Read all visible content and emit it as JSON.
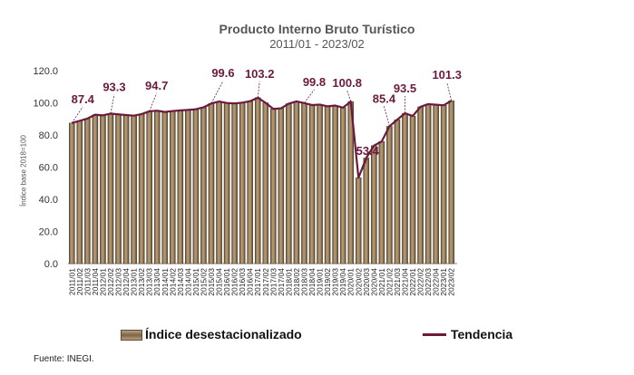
{
  "chart_title": "Producto Interno Bruto Turístico",
  "chart_subtitle": "2011/01 - 2023/02",
  "source_note": "Fuente: INEGI.",
  "chart_data": {
    "type": "bar",
    "ylabel": "Índice base 2018=100",
    "ylim": [
      0,
      120
    ],
    "yticks": [
      "0.0",
      "20.0",
      "40.0",
      "60.0",
      "80.0",
      "100.0",
      "120.0"
    ],
    "grid": false,
    "legend_position": "bottom",
    "categories": [
      "2011/01",
      "2011/02",
      "2011/03",
      "2011/04",
      "2012/01",
      "2012/02",
      "2012/03",
      "2012/04",
      "2013/01",
      "2013/02",
      "2013/03",
      "2013/04",
      "2014/01",
      "2014/02",
      "2014/03",
      "2014/04",
      "2015/01",
      "2015/02",
      "2015/03",
      "2015/04",
      "2016/01",
      "2016/02",
      "2016/03",
      "2016/04",
      "2017/01",
      "2017/02",
      "2017/03",
      "2017/04",
      "2018/01",
      "2018/02",
      "2018/03",
      "2018/04",
      "2019/01",
      "2019/02",
      "2019/03",
      "2019/04",
      "2020/01",
      "2020/02",
      "2020/03",
      "2020/04",
      "2021/01",
      "2021/02",
      "2021/03",
      "2021/04",
      "2022/01",
      "2022/02",
      "2022/03",
      "2022/04",
      "2023/01",
      "2023/02"
    ],
    "series": [
      {
        "name": "Índice desestacionalizado",
        "kind": "bar",
        "color": "#8a7555",
        "values": [
          87.4,
          88.8,
          90.2,
          92.6,
          92.2,
          93.3,
          92.8,
          92.4,
          92.0,
          93.0,
          94.7,
          95.1,
          94.3,
          94.9,
          95.3,
          95.6,
          96.0,
          97.2,
          99.6,
          100.8,
          99.9,
          99.6,
          100.1,
          101.0,
          103.2,
          100.0,
          96.2,
          96.6,
          99.5,
          100.9,
          99.8,
          98.6,
          98.9,
          97.8,
          98.3,
          97.0,
          100.8,
          53.4,
          65.7,
          73.4,
          76.0,
          85.4,
          89.5,
          93.5,
          91.8,
          97.5,
          99.2,
          98.8,
          98.5,
          101.3
        ]
      },
      {
        "name": "Tendencia",
        "kind": "line",
        "color": "#6b1a3c",
        "values": [
          87.4,
          88.8,
          90.2,
          92.6,
          92.2,
          93.3,
          92.8,
          92.4,
          92.0,
          93.0,
          94.7,
          95.1,
          94.3,
          94.9,
          95.3,
          95.6,
          96.0,
          97.2,
          99.6,
          100.8,
          99.9,
          99.6,
          100.1,
          101.0,
          103.2,
          100.0,
          96.2,
          96.6,
          99.5,
          100.9,
          99.8,
          98.6,
          98.9,
          97.8,
          98.3,
          97.0,
          100.8,
          53.4,
          65.7,
          73.4,
          76.0,
          85.4,
          89.5,
          93.5,
          91.8,
          97.5,
          99.2,
          98.8,
          98.5,
          101.3
        ]
      }
    ],
    "annotations": [
      {
        "category": "2011/01",
        "text": "87.4"
      },
      {
        "category": "2012/02",
        "text": "93.3"
      },
      {
        "category": "2013/03",
        "text": "94.7"
      },
      {
        "category": "2015/03",
        "text": "99.6"
      },
      {
        "category": "2017/01",
        "text": "103.2"
      },
      {
        "category": "2018/03",
        "text": "99.8"
      },
      {
        "category": "2020/01",
        "text": "100.8"
      },
      {
        "category": "2020/02",
        "text": "53.4"
      },
      {
        "category": "2021/02",
        "text": "85.4"
      },
      {
        "category": "2021/04",
        "text": "93.5"
      },
      {
        "category": "2023/02",
        "text": "101.3"
      }
    ],
    "annotation_color": "#6b1a3c"
  }
}
